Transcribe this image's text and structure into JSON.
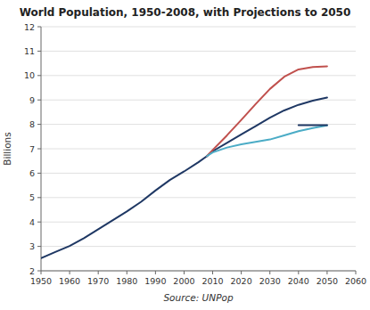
{
  "chart_data": {
    "type": "line",
    "title": "World Population, 1950-2008, with Projections to 2050",
    "xlabel": "Source: UNPop",
    "ylabel": "Billions",
    "xlim": [
      1950,
      2060
    ],
    "ylim": [
      2,
      12
    ],
    "xticks": [
      1950,
      1960,
      1970,
      1980,
      1990,
      2000,
      2010,
      2020,
      2030,
      2040,
      2050,
      2060
    ],
    "yticks": [
      2,
      3,
      4,
      5,
      6,
      7,
      8,
      9,
      10,
      11,
      12
    ],
    "grid": "y",
    "series": [
      {
        "x": [
          1950,
          1955,
          1960,
          1965,
          1970,
          1975,
          1980,
          1985,
          1990,
          1995,
          2000,
          2005,
          2008
        ],
        "values": [
          2.52,
          2.77,
          3.02,
          3.34,
          3.7,
          4.07,
          4.43,
          4.83,
          5.29,
          5.72,
          6.07,
          6.45,
          6.7
        ],
        "color": "#1f3864"
      },
      {
        "x": [
          2008,
          2010,
          2015,
          2020,
          2025,
          2030,
          2035,
          2040,
          2045,
          2050
        ],
        "values": [
          6.7,
          6.9,
          7.24,
          7.59,
          7.93,
          8.27,
          8.57,
          8.8,
          8.97,
          9.1
        ],
        "color": "#1f3864"
      },
      {
        "x": [
          2008,
          2010,
          2015,
          2020,
          2025,
          2030,
          2035,
          2040,
          2045,
          2050
        ],
        "values": [
          6.7,
          6.95,
          7.55,
          8.18,
          8.83,
          9.45,
          9.95,
          10.25,
          10.35,
          10.38
        ],
        "color": "#c0504d"
      },
      {
        "x": [
          2008,
          2010,
          2015,
          2020,
          2025,
          2030,
          2035,
          2040,
          2045,
          2050
        ],
        "values": [
          6.7,
          6.85,
          7.05,
          7.18,
          7.28,
          7.38,
          7.55,
          7.72,
          7.85,
          7.96
        ],
        "color": "#4bacc6"
      },
      {
        "x": [
          2040,
          2050
        ],
        "values": [
          7.97,
          7.97
        ],
        "color": "#1f3864"
      }
    ]
  }
}
